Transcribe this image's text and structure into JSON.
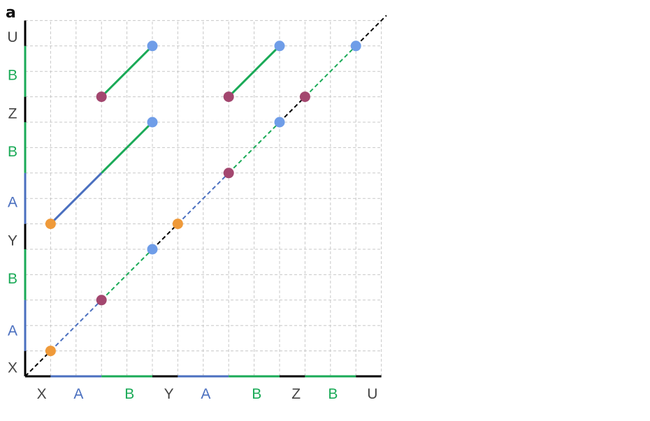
{
  "panel_label": "a",
  "x_ticks": [
    {
      "label": "X",
      "color": "#444444"
    },
    {
      "label": "A",
      "color": "#4a6fbf"
    },
    {
      "label": "B",
      "color": "#1aaa57"
    },
    {
      "label": "Y",
      "color": "#444444"
    },
    {
      "label": "A",
      "color": "#4a6fbf"
    },
    {
      "label": "B",
      "color": "#1aaa57"
    },
    {
      "label": "Z",
      "color": "#444444"
    },
    {
      "label": "B",
      "color": "#1aaa57"
    },
    {
      "label": "U",
      "color": "#444444"
    }
  ],
  "y_ticks": [
    {
      "label": "X",
      "color": "#444444"
    },
    {
      "label": "A",
      "color": "#4a6fbf"
    },
    {
      "label": "B",
      "color": "#1aaa57"
    },
    {
      "label": "Y",
      "color": "#444444"
    },
    {
      "label": "A",
      "color": "#4a6fbf"
    },
    {
      "label": "B",
      "color": "#1aaa57"
    },
    {
      "label": "Z",
      "color": "#444444"
    },
    {
      "label": "B",
      "color": "#1aaa57"
    },
    {
      "label": "U",
      "color": "#444444"
    }
  ],
  "colors": {
    "blue_segment": "#4a6fbf",
    "green_segment": "#1aaa57",
    "axis": "#000000",
    "grid": "#c8c8c8",
    "orange_point": "#ef9a3a",
    "purple_point": "#a3476f",
    "blue_point": "#6f9de8"
  }
}
